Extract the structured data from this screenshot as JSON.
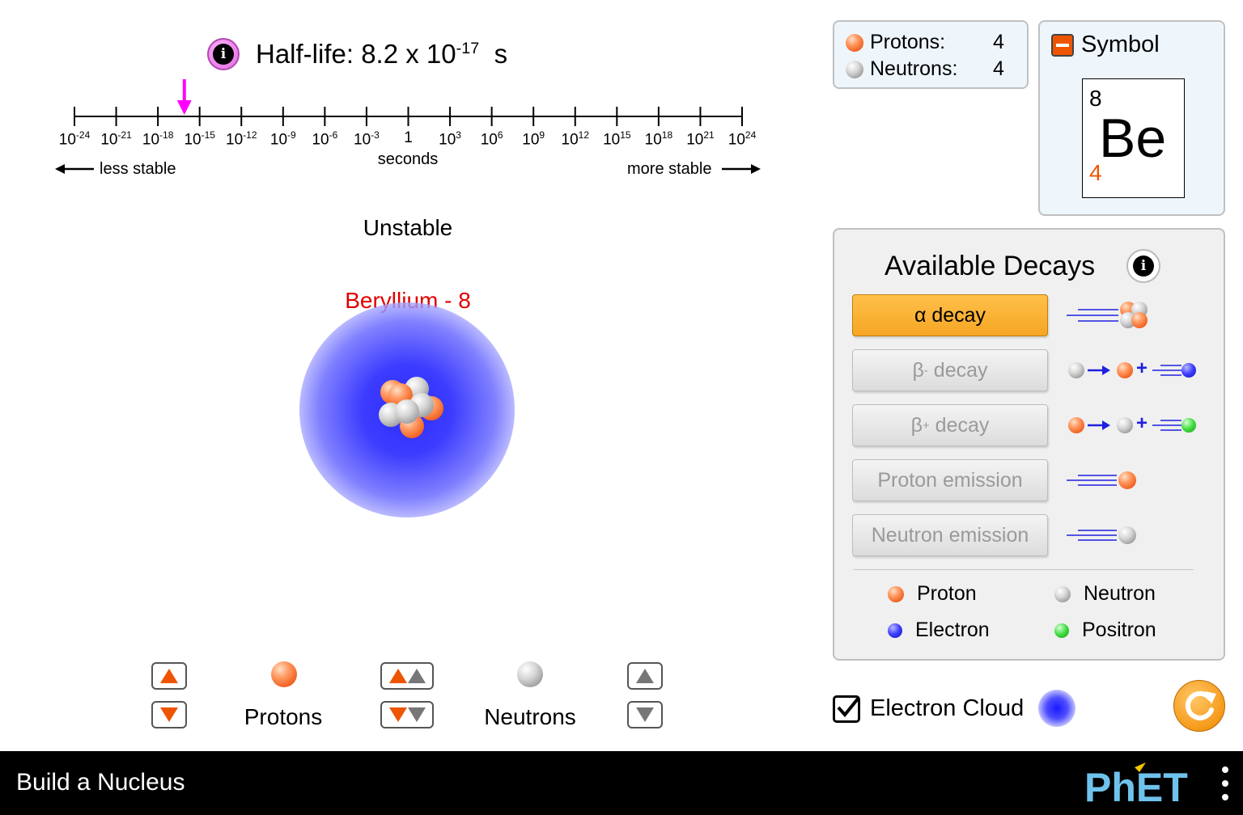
{
  "half_life": {
    "label": "Half-life: 8.2 x 10",
    "exponent": "-17",
    "unit": "s"
  },
  "timeline": {
    "tick_labels": [
      {
        "base": "10",
        "exp": "-24"
      },
      {
        "base": "10",
        "exp": "-21"
      },
      {
        "base": "10",
        "exp": "-18"
      },
      {
        "base": "10",
        "exp": "-15"
      },
      {
        "base": "10",
        "exp": "-12"
      },
      {
        "base": "10",
        "exp": "-9"
      },
      {
        "base": "10",
        "exp": "-6"
      },
      {
        "base": "10",
        "exp": "-3"
      },
      {
        "base": "1",
        "exp": ""
      },
      {
        "base": "10",
        "exp": "3"
      },
      {
        "base": "10",
        "exp": "6"
      },
      {
        "base": "10",
        "exp": "9"
      },
      {
        "base": "10",
        "exp": "12"
      },
      {
        "base": "10",
        "exp": "15"
      },
      {
        "base": "10",
        "exp": "18"
      },
      {
        "base": "10",
        "exp": "21"
      },
      {
        "base": "10",
        "exp": "24"
      }
    ],
    "axis_label": "seconds",
    "less_stable": "less stable",
    "more_stable": "more stable",
    "marker_log10_value": -16.1
  },
  "stability": "Unstable",
  "element_name": "Beryllium - 8",
  "controls": {
    "protons_label": "Protons",
    "neutrons_label": "Neutrons"
  },
  "counts": {
    "protons_label": "Protons:",
    "protons_value": "4",
    "neutrons_label": "Neutrons:",
    "neutrons_value": "4"
  },
  "symbol": {
    "title": "Symbol",
    "mass_number": "8",
    "letters": "Be",
    "atomic_number": "4"
  },
  "decays": {
    "title": "Available Decays",
    "buttons": [
      {
        "label": "α decay",
        "sup": "",
        "suffix": "",
        "enabled": true
      },
      {
        "label": "β",
        "sup": "-",
        "suffix": " decay",
        "enabled": false
      },
      {
        "label": "β",
        "sup": "+",
        "suffix": " decay",
        "enabled": false
      },
      {
        "label": "Proton emission",
        "sup": "",
        "suffix": "",
        "enabled": false
      },
      {
        "label": "Neutron emission",
        "sup": "",
        "suffix": "",
        "enabled": false
      }
    ],
    "legend": {
      "proton": "Proton",
      "neutron": "Neutron",
      "electron": "Electron",
      "positron": "Positron"
    }
  },
  "electron_cloud": {
    "label": "Electron Cloud",
    "checked": true
  },
  "footer": {
    "sim_title": "Build a Nucleus",
    "logo_text": "PhET"
  },
  "colors": {
    "proton": "#f06020",
    "neutron": "#a0a0a0",
    "electron": "#2a2aff",
    "positron": "#3fdc3f",
    "accent_orange": "#f5a623",
    "element_name": "#e00000",
    "marker": "#ff00ff"
  }
}
